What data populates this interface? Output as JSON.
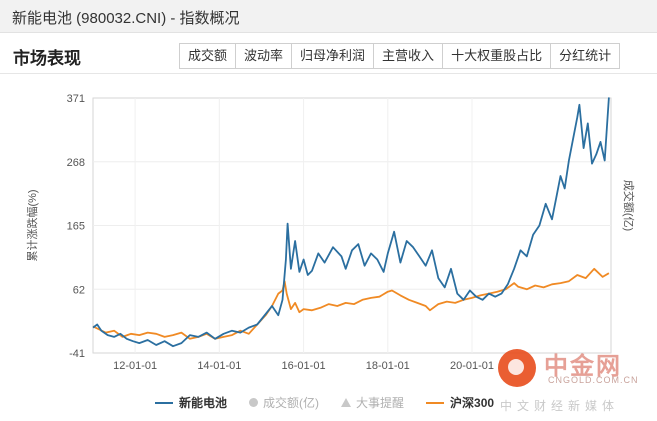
{
  "window": {
    "title": "新能电池 (980032.CNI) - 指数概况"
  },
  "section": {
    "title": "市场表现"
  },
  "tabs": [
    {
      "label": "成交额",
      "active": true
    },
    {
      "label": "波动率",
      "active": false
    },
    {
      "label": "归母净利润",
      "active": false
    },
    {
      "label": "主营收入",
      "active": false
    },
    {
      "label": "十大权重股占比",
      "active": false
    },
    {
      "label": "分红统计",
      "active": false
    }
  ],
  "legend": {
    "items": [
      {
        "label": "新能电池",
        "color": "#2b6fa0",
        "shape": "line",
        "enabled": true
      },
      {
        "label": "成交额(亿)",
        "color": "#c8c8c8",
        "shape": "dot",
        "enabled": false
      },
      {
        "label": "大事提醒",
        "color": "#c8c8c8",
        "shape": "triangle",
        "enabled": false
      },
      {
        "label": "沪深300",
        "color": "#f08a24",
        "shape": "line",
        "enabled": true
      }
    ]
  },
  "watermark": {
    "name": "中金网",
    "domain": "CNGOLD.COM.CN",
    "tagline": "中文财经新媒体"
  },
  "chart_data": {
    "type": "line",
    "ylabel": "累计涨跌幅(%)",
    "y2label": "成交额(亿)",
    "yticks": [
      371,
      268,
      165,
      62,
      -41
    ],
    "ylim": [
      -41,
      371
    ],
    "xlim": [
      2011.0,
      2023.3
    ],
    "xticks": [
      "12-01-01",
      "14-01-01",
      "16-01-01",
      "18-01-01",
      "20-01-01"
    ],
    "xtick_years": [
      2012,
      2014,
      2016,
      2018,
      2020
    ],
    "grid": true,
    "series": [
      {
        "name": "新能电池",
        "color": "#2b6fa0",
        "x": [
          2011.0,
          2011.1,
          2011.2,
          2011.35,
          2011.5,
          2011.65,
          2011.8,
          2011.95,
          2012.1,
          2012.3,
          2012.5,
          2012.7,
          2012.9,
          2013.1,
          2013.3,
          2013.5,
          2013.7,
          2013.9,
          2014.1,
          2014.3,
          2014.5,
          2014.7,
          2014.9,
          2015.1,
          2015.25,
          2015.4,
          2015.5,
          2015.58,
          2015.62,
          2015.7,
          2015.8,
          2015.9,
          2016.0,
          2016.1,
          2016.2,
          2016.35,
          2016.5,
          2016.7,
          2016.9,
          2017.0,
          2017.15,
          2017.3,
          2017.45,
          2017.6,
          2017.75,
          2017.9,
          2018.0,
          2018.15,
          2018.3,
          2018.45,
          2018.6,
          2018.75,
          2018.9,
          2019.05,
          2019.2,
          2019.35,
          2019.5,
          2019.65,
          2019.8,
          2019.95,
          2020.1,
          2020.25,
          2020.4,
          2020.55,
          2020.7,
          2020.85,
          2021.0,
          2021.15,
          2021.3,
          2021.45,
          2021.6,
          2021.75,
          2021.9,
          2022.0,
          2022.1,
          2022.2,
          2022.3,
          2022.4,
          2022.5,
          2022.55,
          2022.65,
          2022.75,
          2022.85,
          2022.95,
          2023.05,
          2023.15,
          2023.25
        ],
        "y": [
          0,
          5,
          -5,
          -12,
          -15,
          -10,
          -18,
          -22,
          -25,
          -20,
          -28,
          -22,
          -30,
          -25,
          -12,
          -15,
          -8,
          -18,
          -10,
          -5,
          -8,
          0,
          5,
          22,
          35,
          20,
          45,
          110,
          168,
          95,
          140,
          90,
          110,
          85,
          92,
          120,
          105,
          130,
          115,
          95,
          125,
          135,
          100,
          120,
          110,
          90,
          120,
          155,
          105,
          140,
          130,
          115,
          100,
          125,
          80,
          65,
          95,
          55,
          45,
          60,
          50,
          45,
          55,
          50,
          55,
          70,
          95,
          125,
          115,
          150,
          165,
          200,
          175,
          210,
          245,
          225,
          270,
          305,
          340,
          360,
          290,
          330,
          265,
          280,
          300,
          270,
          372
        ]
      },
      {
        "name": "沪深300",
        "color": "#f08a24",
        "x": [
          2011.0,
          2011.15,
          2011.3,
          2011.5,
          2011.7,
          2011.9,
          2012.1,
          2012.3,
          2012.5,
          2012.7,
          2012.9,
          2013.1,
          2013.3,
          2013.5,
          2013.7,
          2013.9,
          2014.1,
          2014.3,
          2014.5,
          2014.7,
          2014.9,
          2015.1,
          2015.25,
          2015.4,
          2015.5,
          2015.55,
          2015.6,
          2015.7,
          2015.8,
          2015.9,
          2016.0,
          2016.2,
          2016.4,
          2016.6,
          2016.8,
          2017.0,
          2017.2,
          2017.4,
          2017.6,
          2017.8,
          2018.0,
          2018.1,
          2018.3,
          2018.5,
          2018.7,
          2018.9,
          2019.0,
          2019.2,
          2019.4,
          2019.6,
          2019.8,
          2020.0,
          2020.2,
          2020.4,
          2020.6,
          2020.8,
          2021.0,
          2021.1,
          2021.3,
          2021.5,
          2021.7,
          2021.9,
          2022.1,
          2022.3,
          2022.5,
          2022.7,
          2022.9,
          2023.1,
          2023.25
        ],
        "y": [
          2,
          -3,
          -8,
          -5,
          -15,
          -10,
          -12,
          -8,
          -10,
          -15,
          -12,
          -8,
          -18,
          -15,
          -10,
          -18,
          -15,
          -12,
          -5,
          -10,
          5,
          20,
          35,
          55,
          60,
          75,
          55,
          30,
          40,
          25,
          30,
          28,
          32,
          38,
          35,
          40,
          38,
          45,
          48,
          50,
          58,
          60,
          52,
          45,
          40,
          35,
          28,
          38,
          42,
          40,
          45,
          48,
          52,
          55,
          58,
          62,
          72,
          66,
          62,
          68,
          65,
          70,
          72,
          75,
          85,
          80,
          95,
          82,
          88
        ]
      }
    ]
  }
}
